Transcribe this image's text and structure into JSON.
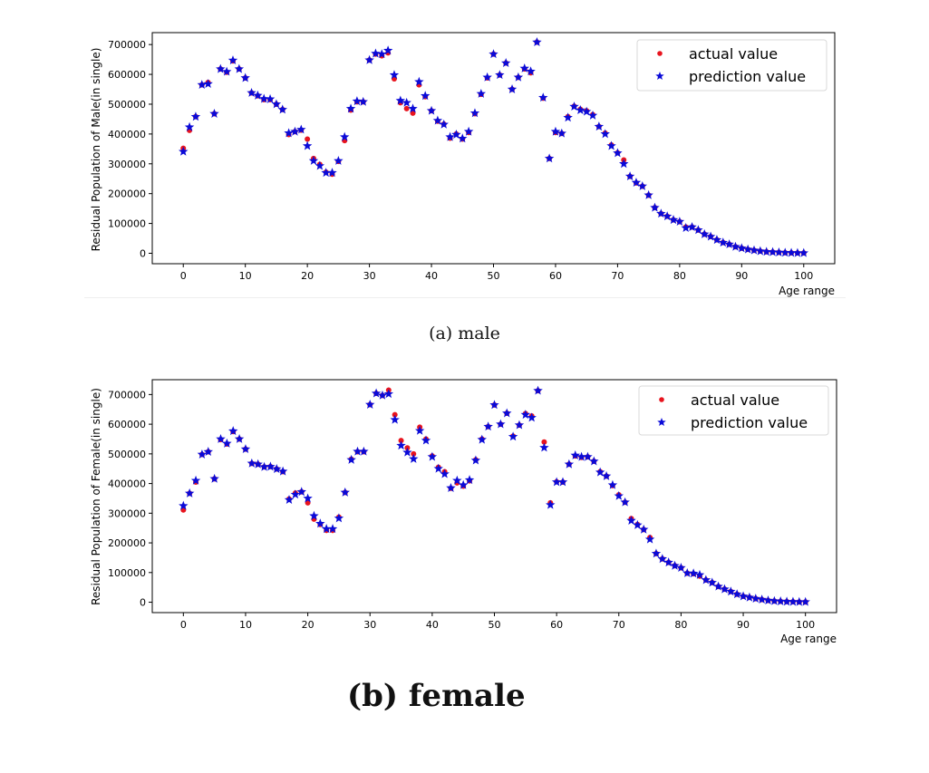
{
  "colors": {
    "actual": "#e8141e",
    "prediction": "#0a0ad8",
    "axis": "#000000"
  },
  "captions": {
    "a": "(a) male",
    "b": "(b) female"
  },
  "chart_data": [
    {
      "id": "male",
      "type": "scatter",
      "title": "",
      "xlabel": "Age range",
      "ylabel": "Residual Population of Male(in single)",
      "xlim": [
        -5,
        105
      ],
      "ylim": [
        -35000,
        740000
      ],
      "xticks": [
        0,
        10,
        20,
        30,
        40,
        50,
        60,
        70,
        80,
        90,
        100
      ],
      "xtick_labels": [
        "0",
        "10",
        "20",
        "30",
        "40",
        "50",
        "60",
        "70",
        "80",
        "90",
        "100"
      ],
      "yticks": [
        0,
        100000,
        200000,
        300000,
        400000,
        500000,
        600000,
        700000
      ],
      "ytick_labels": [
        "0",
        "100000",
        "200000",
        "300000",
        "400000",
        "500000",
        "600000",
        "700000"
      ],
      "grid": false,
      "legend": {
        "position": "top-right",
        "entries": [
          "actual value",
          "prediction value"
        ]
      },
      "x": [
        0,
        1,
        2,
        3,
        4,
        5,
        6,
        7,
        8,
        9,
        10,
        11,
        12,
        13,
        14,
        15,
        16,
        17,
        18,
        19,
        20,
        21,
        22,
        23,
        24,
        25,
        26,
        27,
        28,
        29,
        30,
        31,
        32,
        33,
        34,
        35,
        36,
        37,
        38,
        39,
        40,
        41,
        42,
        43,
        44,
        45,
        46,
        47,
        48,
        49,
        50,
        51,
        52,
        53,
        54,
        55,
        56,
        57,
        58,
        59,
        60,
        61,
        62,
        63,
        64,
        65,
        66,
        67,
        68,
        69,
        70,
        71,
        72,
        73,
        74,
        75,
        76,
        77,
        78,
        79,
        80,
        81,
        82,
        83,
        84,
        85,
        86,
        87,
        88,
        89,
        90,
        91,
        92,
        93,
        94,
        95,
        96,
        97,
        98,
        99,
        100
      ],
      "series": [
        {
          "name": "actual value",
          "marker": "circle",
          "values": [
            352000,
            412000,
            458000,
            565000,
            573000,
            468000,
            618000,
            607000,
            645000,
            618000,
            588000,
            538000,
            528000,
            515000,
            515000,
            500000,
            482000,
            398000,
            408000,
            413000,
            383000,
            318000,
            298000,
            272000,
            265000,
            308000,
            378000,
            480000,
            508000,
            508000,
            648000,
            668000,
            662000,
            672000,
            585000,
            505000,
            485000,
            470000,
            565000,
            525000,
            478000,
            443000,
            433000,
            386000,
            400000,
            383000,
            405000,
            468000,
            533000,
            588000,
            668000,
            598000,
            638000,
            550000,
            590000,
            618000,
            605000,
            708000,
            520000,
            318000,
            405000,
            402000,
            458000,
            493000,
            483000,
            478000,
            465000,
            425000,
            403000,
            363000,
            337000,
            313000,
            258000,
            236000,
            225000,
            195000,
            153000,
            133000,
            124000,
            112000,
            106000,
            88000,
            88000,
            78000,
            64000,
            56000,
            45000,
            36000,
            30000,
            22000,
            17000,
            13000,
            10000,
            7000,
            5000,
            4000,
            3000,
            2000,
            1500,
            1000,
            1000
          ]
        },
        {
          "name": "prediction value",
          "marker": "star",
          "values": [
            341000,
            423000,
            458000,
            565000,
            568000,
            468000,
            618000,
            609000,
            647000,
            618000,
            588000,
            538000,
            529000,
            518000,
            517000,
            500000,
            482000,
            403000,
            408000,
            415000,
            360000,
            310000,
            293000,
            270000,
            270000,
            310000,
            390000,
            485000,
            510000,
            508000,
            648000,
            670000,
            668000,
            680000,
            598000,
            512000,
            505000,
            485000,
            575000,
            528000,
            478000,
            445000,
            432000,
            390000,
            398000,
            385000,
            408000,
            470000,
            535000,
            590000,
            668000,
            598000,
            638000,
            550000,
            590000,
            620000,
            610000,
            708000,
            522000,
            318000,
            408000,
            402000,
            455000,
            492000,
            480000,
            475000,
            462000,
            425000,
            400000,
            360000,
            336000,
            300000,
            258000,
            237000,
            225000,
            195000,
            153000,
            133000,
            124000,
            112000,
            106000,
            85000,
            88000,
            78000,
            64000,
            56000,
            45000,
            36000,
            30000,
            22000,
            17000,
            13000,
            10000,
            7000,
            5000,
            4000,
            3000,
            2000,
            1500,
            1000,
            1000
          ]
        }
      ]
    },
    {
      "id": "female",
      "type": "scatter",
      "title": "",
      "xlabel": "Age range",
      "ylabel": "Residual Population of Female(in single)",
      "xlim": [
        -5,
        105
      ],
      "ylim": [
        -35000,
        750000
      ],
      "xticks": [
        0,
        10,
        20,
        30,
        40,
        50,
        60,
        70,
        80,
        90,
        100
      ],
      "xtick_labels": [
        "0",
        "10",
        "20",
        "30",
        "40",
        "50",
        "60",
        "70",
        "80",
        "90",
        "100"
      ],
      "yticks": [
        0,
        100000,
        200000,
        300000,
        400000,
        500000,
        600000,
        700000
      ],
      "ytick_labels": [
        "0",
        "100000",
        "200000",
        "300000",
        "400000",
        "500000",
        "600000",
        "700000"
      ],
      "grid": false,
      "legend": {
        "position": "top-right",
        "entries": [
          "actual value",
          "prediction value"
        ]
      },
      "x": [
        0,
        1,
        2,
        3,
        4,
        5,
        6,
        7,
        8,
        9,
        10,
        11,
        12,
        13,
        14,
        15,
        16,
        17,
        18,
        19,
        20,
        21,
        22,
        23,
        24,
        25,
        26,
        27,
        28,
        29,
        30,
        31,
        32,
        33,
        34,
        35,
        36,
        37,
        38,
        39,
        40,
        41,
        42,
        43,
        44,
        45,
        46,
        47,
        48,
        49,
        50,
        51,
        52,
        53,
        54,
        55,
        56,
        57,
        58,
        59,
        60,
        61,
        62,
        63,
        64,
        65,
        66,
        67,
        68,
        69,
        70,
        71,
        72,
        73,
        74,
        75,
        76,
        77,
        78,
        79,
        80,
        81,
        82,
        83,
        84,
        85,
        86,
        87,
        88,
        89,
        90,
        91,
        92,
        93,
        94,
        95,
        96,
        97,
        98,
        99,
        100
      ],
      "series": [
        {
          "name": "actual value",
          "marker": "circle",
          "values": [
            311000,
            367000,
            405000,
            498000,
            507000,
            416000,
            548000,
            533000,
            575000,
            550000,
            516000,
            468000,
            465000,
            456000,
            457000,
            449000,
            440000,
            348000,
            368000,
            372000,
            335000,
            280000,
            262000,
            242000,
            242000,
            287000,
            370000,
            482000,
            507000,
            507000,
            666000,
            704000,
            697000,
            715000,
            632000,
            545000,
            520000,
            500000,
            590000,
            550000,
            493000,
            455000,
            440000,
            384000,
            402000,
            391000,
            409000,
            480000,
            550000,
            592000,
            665000,
            600000,
            637000,
            560000,
            597000,
            636000,
            628000,
            713000,
            540000,
            335000,
            406000,
            405000,
            465000,
            493000,
            488000,
            490000,
            475000,
            440000,
            425000,
            393000,
            362000,
            337000,
            282000,
            262000,
            245000,
            218000,
            164000,
            146000,
            134000,
            123000,
            116000,
            98000,
            96000,
            88000,
            75000,
            66000,
            53000,
            44000,
            36000,
            27000,
            20000,
            16000,
            12000,
            9000,
            6000,
            4000,
            3000,
            2000,
            1500,
            1000,
            1000
          ]
        },
        {
          "name": "prediction value",
          "marker": "star",
          "values": [
            325000,
            367000,
            410000,
            498000,
            507000,
            416000,
            550000,
            535000,
            577000,
            550000,
            516000,
            468000,
            465000,
            456000,
            457000,
            449000,
            441000,
            345000,
            363000,
            372000,
            350000,
            291000,
            265000,
            247000,
            247000,
            283000,
            370000,
            480000,
            508000,
            508000,
            666000,
            704000,
            697000,
            702000,
            615000,
            528000,
            505000,
            483000,
            578000,
            545000,
            490000,
            450000,
            432000,
            385000,
            410000,
            395000,
            412000,
            478000,
            548000,
            592000,
            665000,
            600000,
            637000,
            558000,
            597000,
            632000,
            622000,
            713000,
            521000,
            328000,
            405000,
            405000,
            465000,
            495000,
            490000,
            490000,
            475000,
            438000,
            425000,
            395000,
            358000,
            337000,
            275000,
            260000,
            245000,
            212000,
            164000,
            146000,
            134000,
            123000,
            116000,
            98000,
            97000,
            92000,
            75000,
            66000,
            53000,
            44000,
            36000,
            27000,
            20000,
            16000,
            12000,
            9000,
            6000,
            4000,
            3000,
            2000,
            1500,
            1000,
            1000
          ]
        }
      ]
    }
  ]
}
